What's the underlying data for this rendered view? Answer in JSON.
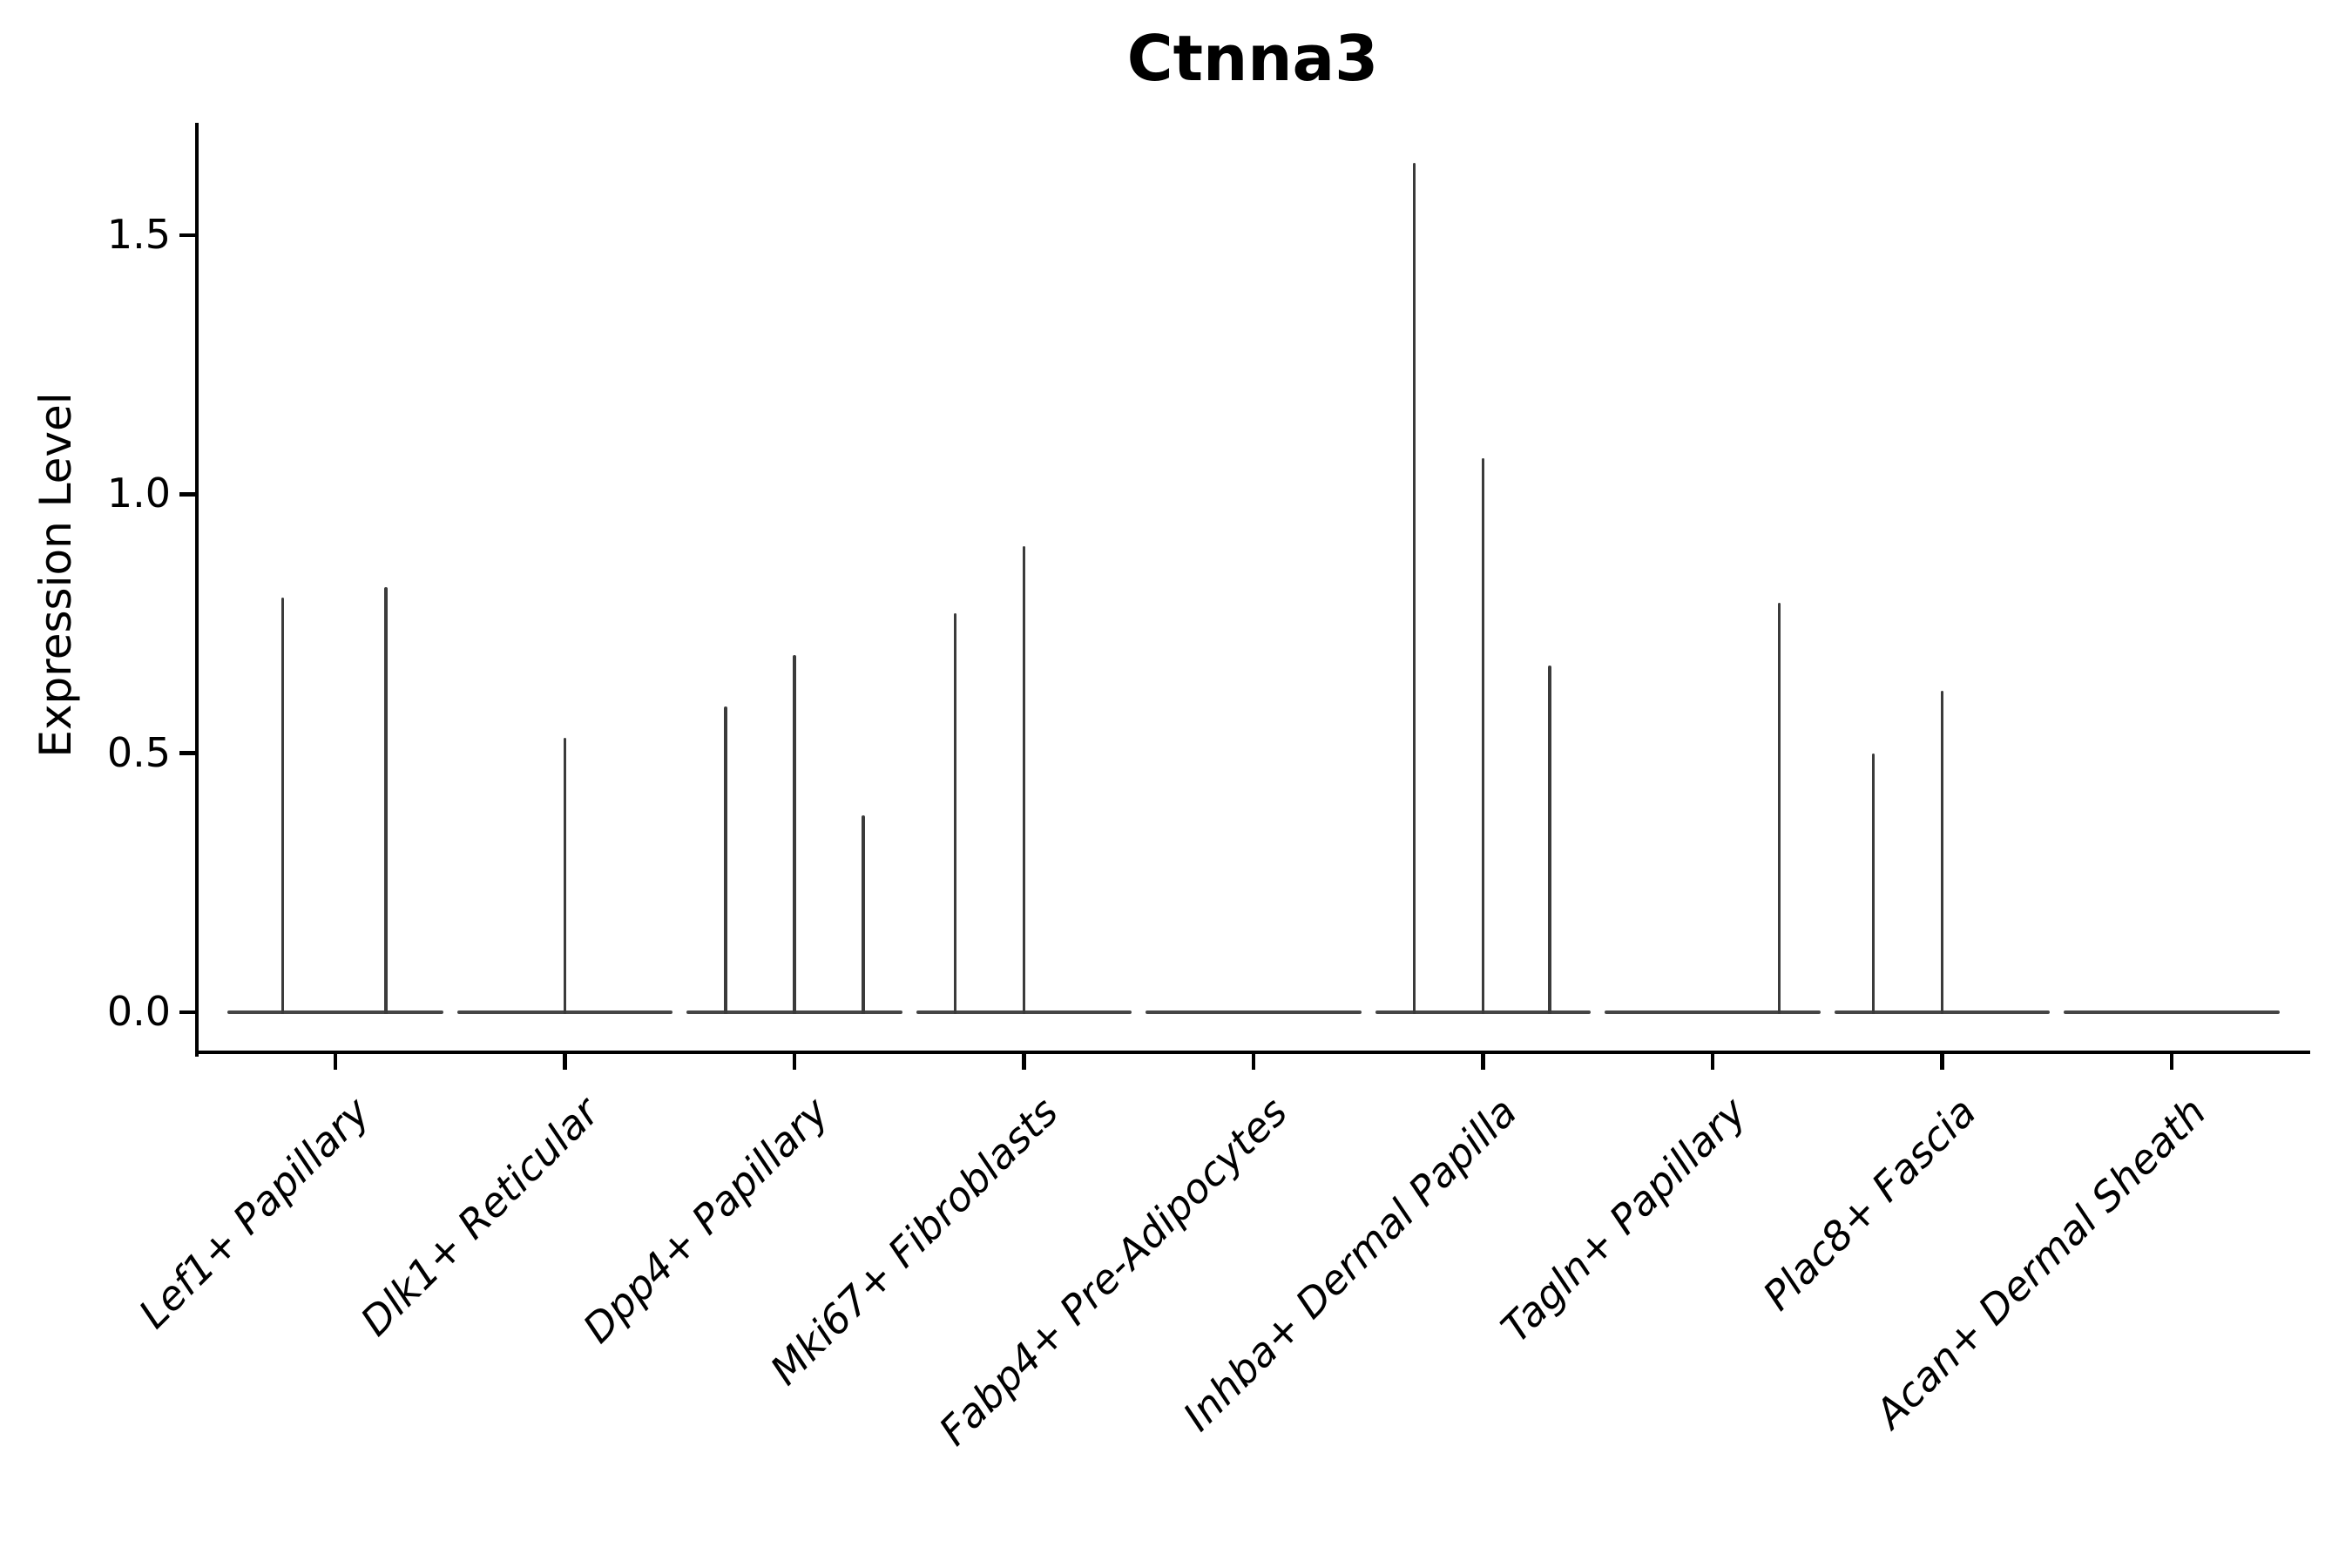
{
  "chart_data": {
    "type": "violin",
    "title": "Ctnna3",
    "ylabel": "Expression Level",
    "xlabel": "",
    "grid": false,
    "legend": "none",
    "ylim": [
      -0.08,
      1.72
    ],
    "yticks": [
      {
        "label": "0.0",
        "value": 0.0
      },
      {
        "label": "0.5",
        "value": 0.5
      },
      {
        "label": "1.0",
        "value": 1.0
      },
      {
        "label": "1.5",
        "value": 1.5
      }
    ],
    "colors": {
      "spike": "#3b3b3b",
      "baseline": "#454545",
      "axis": "#000000",
      "text": "#000000"
    },
    "baseline_halfwidth": 0.47,
    "categories": [
      {
        "label": "Lef1+ Papillary",
        "spikes": [
          {
            "offset": -0.23,
            "value": 0.8
          },
          {
            "offset": 0.22,
            "value": 0.82
          }
        ]
      },
      {
        "label": "Dlk1+ Reticular",
        "spikes": [
          {
            "offset": 0.0,
            "value": 0.53
          }
        ]
      },
      {
        "label": "Dpp4+ Papillary",
        "spikes": [
          {
            "offset": -0.3,
            "value": 0.59
          },
          {
            "offset": 0.0,
            "value": 0.69
          },
          {
            "offset": 0.3,
            "value": 0.38
          }
        ]
      },
      {
        "label": "Mki67+ Fibroblasts",
        "spikes": [
          {
            "offset": -0.3,
            "value": 0.77
          },
          {
            "offset": 0.0,
            "value": 0.9
          }
        ]
      },
      {
        "label": "Fabp4+ Pre-Adipocytes",
        "spikes": []
      },
      {
        "label": "Inhba+ Dermal Papilla",
        "spikes": [
          {
            "offset": -0.3,
            "value": 1.64
          },
          {
            "offset": 0.0,
            "value": 1.07
          },
          {
            "offset": 0.29,
            "value": 0.67
          }
        ]
      },
      {
        "label": "Tagln+ Papillary",
        "spikes": [
          {
            "offset": 0.29,
            "value": 0.79
          }
        ]
      },
      {
        "label": "Plac8+ Fascia",
        "spikes": [
          {
            "offset": -0.3,
            "value": 0.5
          },
          {
            "offset": 0.0,
            "value": 0.62
          }
        ]
      },
      {
        "label": "Acan+ Dermal Sheath",
        "spikes": []
      }
    ]
  }
}
